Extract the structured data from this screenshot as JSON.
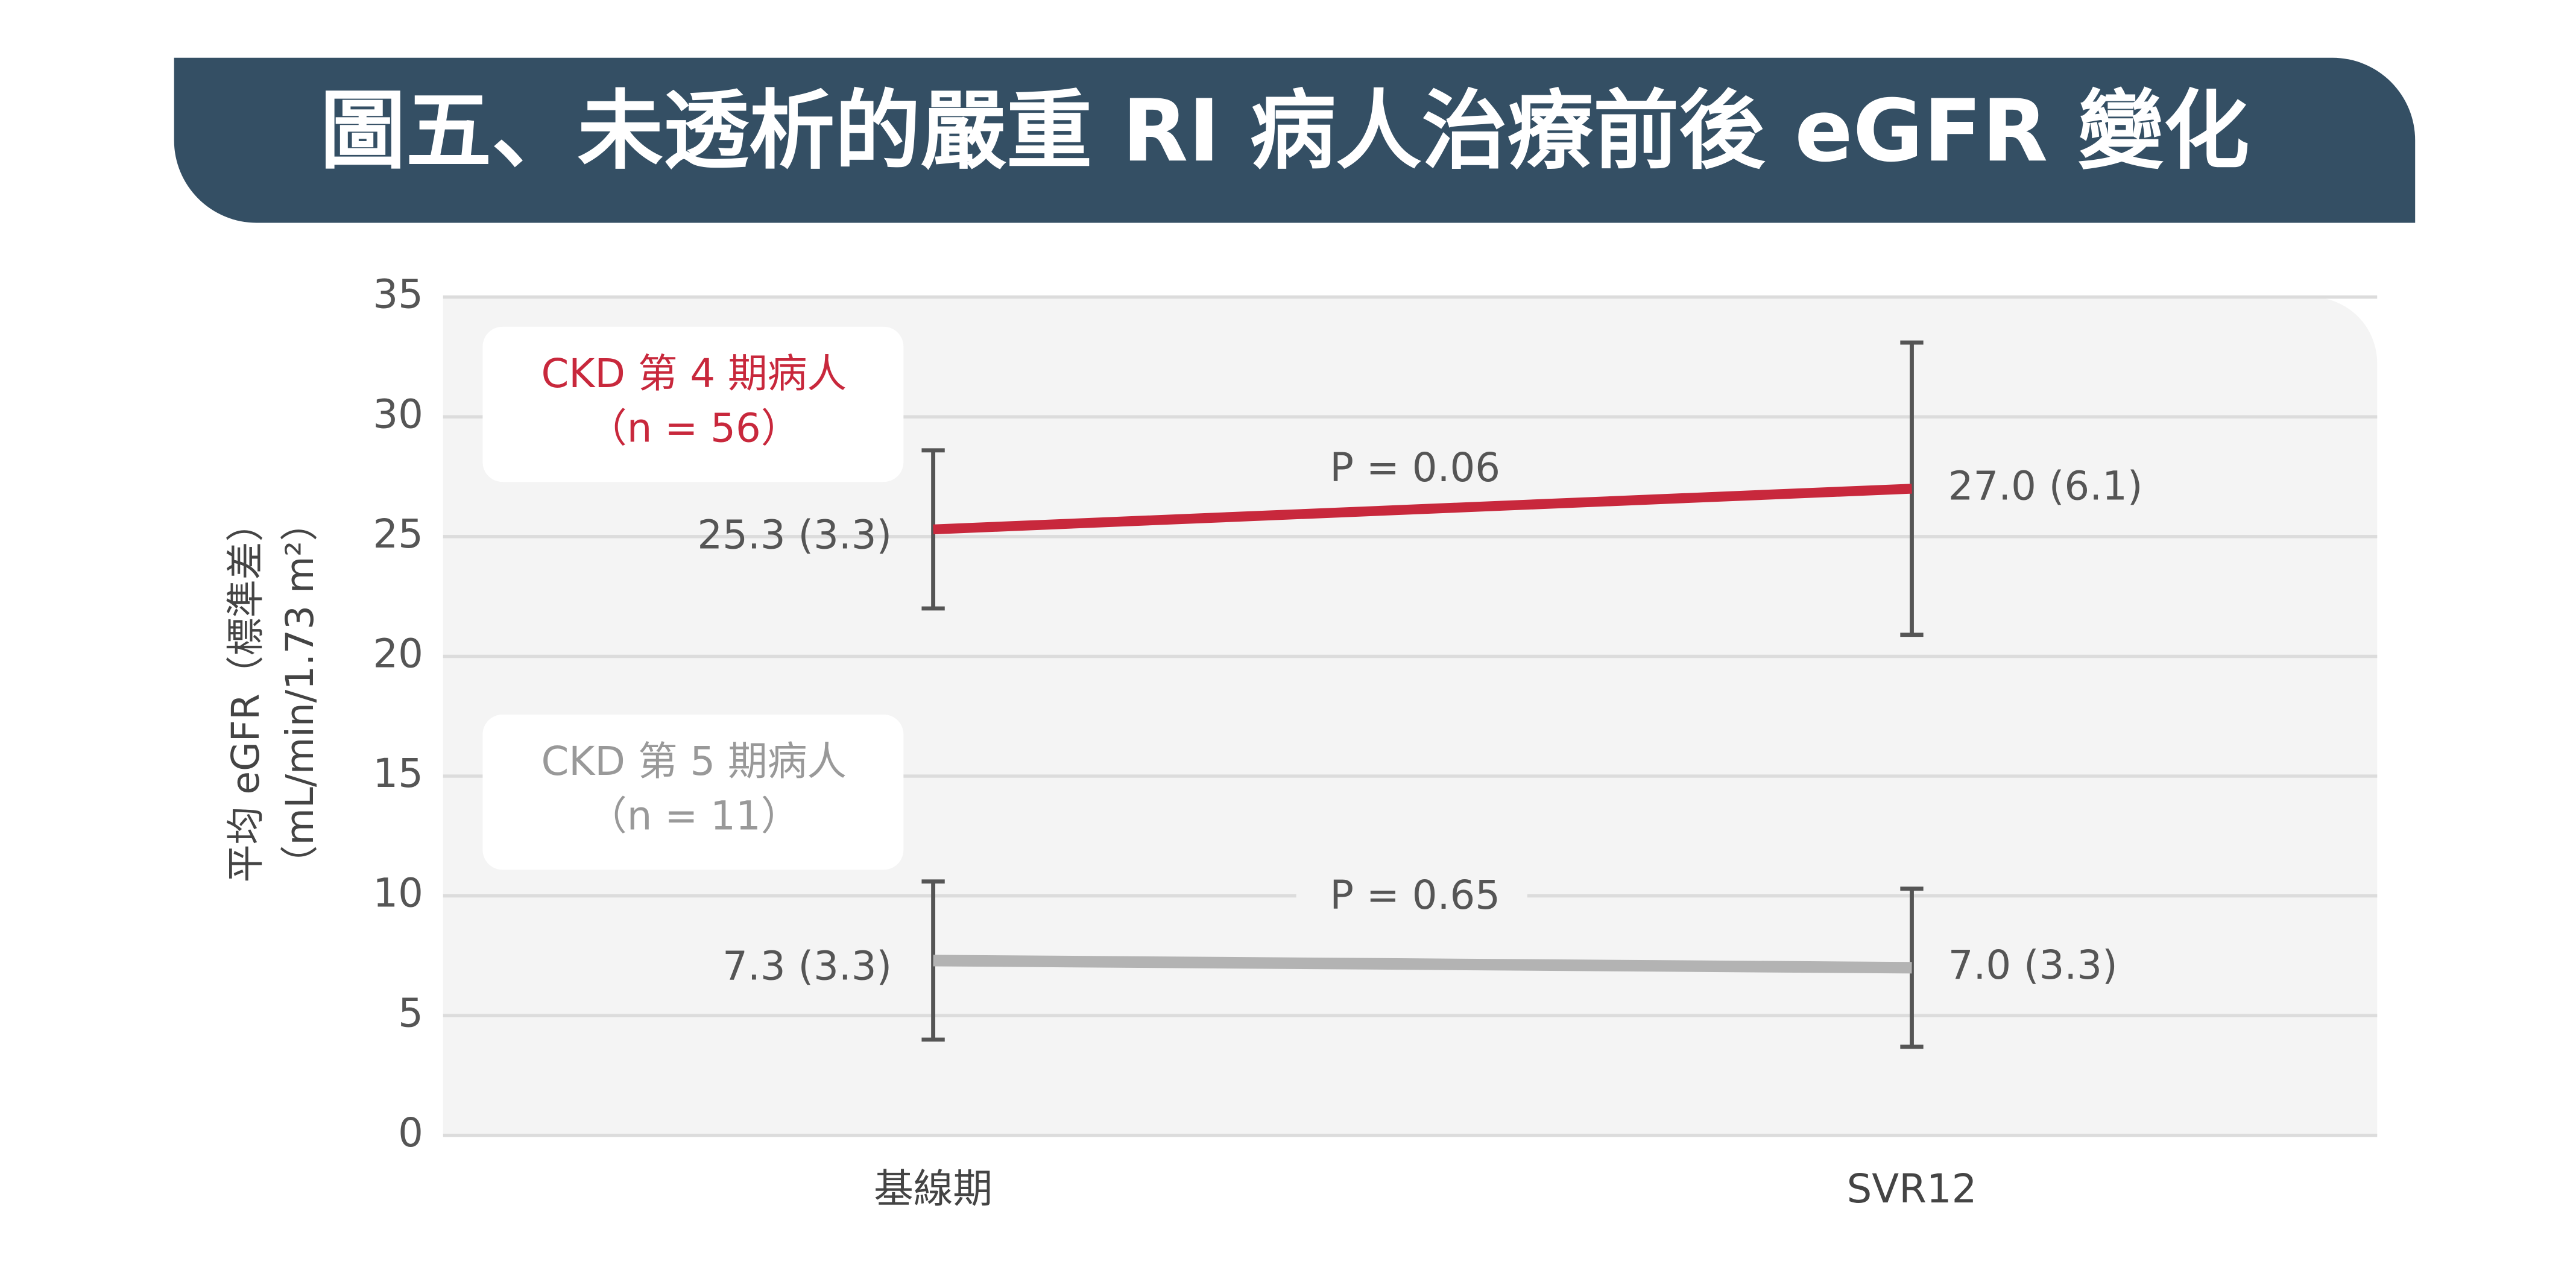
{
  "chart_data": {
    "type": "line",
    "title": "圖五、未透析的嚴重 RI 病人治療前後 eGFR 變化",
    "y_label": [
      "平均 eGFR（標準差）",
      "（mL/min/1.73 m²）"
    ],
    "categories": [
      "基線期",
      "SVR12"
    ],
    "series": [
      {
        "name": "CKD 第 4 期病人",
        "n_label": "（n = 56）",
        "color": "#c8283c",
        "values": [
          25.3,
          27.0
        ],
        "errors": [
          3.3,
          6.1
        ],
        "value_labels": [
          "25.3 (3.3)",
          "27.0 (6.1)"
        ],
        "annotation": "P = 0.06"
      },
      {
        "name": "CKD 第 5 期病人",
        "n_label": "（n = 11）",
        "color": "#b3b3b3",
        "values": [
          7.3,
          7.0
        ],
        "errors": [
          3.3,
          3.3
        ],
        "value_labels": [
          "7.3 (3.3)",
          "7.0 (3.3)"
        ],
        "annotation": "P = 0.65"
      }
    ],
    "ylim": [
      0,
      35
    ],
    "yticks": [
      0,
      5,
      10,
      15,
      20,
      25,
      30,
      35
    ],
    "grid": true
  }
}
